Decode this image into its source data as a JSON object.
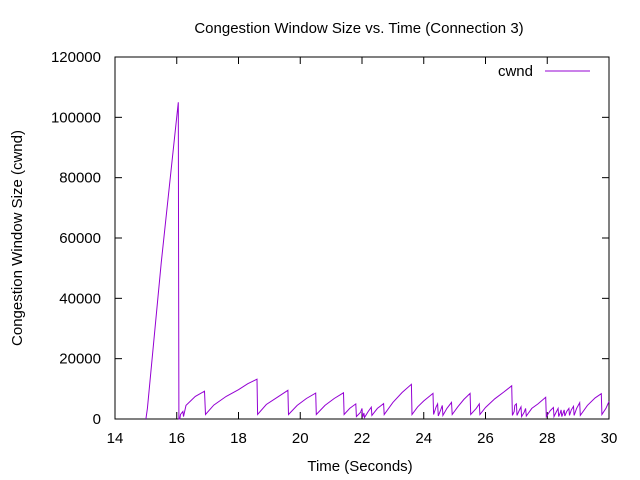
{
  "chart_data": {
    "type": "line",
    "title": "Congestion Window Size vs. Time (Connection 3)",
    "xlabel": "Time (Seconds)",
    "ylabel": "Congestion Window Size (cwnd)",
    "xlim": [
      14,
      30
    ],
    "ylim": [
      0,
      120000
    ],
    "x_ticks": [
      14,
      16,
      18,
      20,
      22,
      24,
      26,
      28,
      30
    ],
    "y_ticks": [
      0,
      20000,
      40000,
      60000,
      80000,
      100000,
      120000
    ],
    "grid": false,
    "legend_position": "top-right",
    "series": [
      {
        "name": "cwnd",
        "color": "#9400d3",
        "points": [
          [
            15.0,
            0
          ],
          [
            15.05,
            3500
          ],
          [
            15.5,
            52000
          ],
          [
            16.05,
            105000
          ],
          [
            16.06,
            52000
          ],
          [
            16.07,
            0
          ],
          [
            16.1,
            0
          ],
          [
            16.12,
            1500
          ],
          [
            16.2,
            2500
          ],
          [
            16.22,
            800
          ],
          [
            16.3,
            4500
          ],
          [
            16.6,
            7500
          ],
          [
            16.9,
            9200
          ],
          [
            16.93,
            1500
          ],
          [
            17.2,
            4600
          ],
          [
            17.6,
            7500
          ],
          [
            18.0,
            9700
          ],
          [
            18.3,
            11700
          ],
          [
            18.6,
            13200
          ],
          [
            18.62,
            1500
          ],
          [
            18.9,
            4800
          ],
          [
            19.3,
            7500
          ],
          [
            19.6,
            9500
          ],
          [
            19.62,
            1500
          ],
          [
            19.9,
            4500
          ],
          [
            20.2,
            6800
          ],
          [
            20.5,
            8600
          ],
          [
            20.52,
            1500
          ],
          [
            20.8,
            4500
          ],
          [
            21.1,
            6800
          ],
          [
            21.4,
            8700
          ],
          [
            21.42,
            1500
          ],
          [
            21.6,
            3500
          ],
          [
            21.8,
            5000
          ],
          [
            21.82,
            800
          ],
          [
            21.95,
            2200
          ],
          [
            22.0,
            3500
          ],
          [
            22.02,
            600
          ],
          [
            22.06,
            2000
          ],
          [
            22.08,
            500
          ],
          [
            22.2,
            2500
          ],
          [
            22.3,
            3900
          ],
          [
            22.32,
            1200
          ],
          [
            22.5,
            3500
          ],
          [
            22.7,
            5100
          ],
          [
            22.72,
            1500
          ],
          [
            23.0,
            5500
          ],
          [
            23.3,
            8800
          ],
          [
            23.6,
            11500
          ],
          [
            23.62,
            1500
          ],
          [
            23.8,
            4000
          ],
          [
            24.0,
            6000
          ],
          [
            24.3,
            8500
          ],
          [
            24.32,
            1500
          ],
          [
            24.4,
            4000
          ],
          [
            24.45,
            5000
          ],
          [
            24.47,
            1000
          ],
          [
            24.55,
            3000
          ],
          [
            24.6,
            4500
          ],
          [
            24.62,
            1200
          ],
          [
            24.75,
            3500
          ],
          [
            24.9,
            5500
          ],
          [
            24.92,
            1500
          ],
          [
            25.1,
            4000
          ],
          [
            25.3,
            6500
          ],
          [
            25.5,
            8500
          ],
          [
            25.52,
            1500
          ],
          [
            25.7,
            3500
          ],
          [
            25.8,
            5000
          ],
          [
            25.82,
            1500
          ],
          [
            26.0,
            3800
          ],
          [
            26.3,
            6700
          ],
          [
            26.6,
            9000
          ],
          [
            26.85,
            11000
          ],
          [
            26.87,
            1200
          ],
          [
            26.93,
            2500
          ],
          [
            26.95,
            4500
          ],
          [
            27.0,
            5000
          ],
          [
            27.02,
            1200
          ],
          [
            27.1,
            3000
          ],
          [
            27.15,
            4000
          ],
          [
            27.17,
            800
          ],
          [
            27.25,
            2200
          ],
          [
            27.3,
            3500
          ],
          [
            27.32,
            1000
          ],
          [
            27.5,
            3500
          ],
          [
            27.7,
            5000
          ],
          [
            27.95,
            7200
          ],
          [
            27.97,
            800
          ],
          [
            28.1,
            2800
          ],
          [
            28.2,
            3800
          ],
          [
            28.22,
            800
          ],
          [
            28.3,
            2500
          ],
          [
            28.35,
            3500
          ],
          [
            28.37,
            800
          ],
          [
            28.42,
            2000
          ],
          [
            28.45,
            3000
          ],
          [
            28.47,
            800
          ],
          [
            28.52,
            2200
          ],
          [
            28.55,
            3000
          ],
          [
            28.57,
            1000
          ],
          [
            28.63,
            2500
          ],
          [
            28.7,
            3500
          ],
          [
            28.72,
            1200
          ],
          [
            28.78,
            3000
          ],
          [
            28.85,
            4200
          ],
          [
            28.87,
            1200
          ],
          [
            28.95,
            3500
          ],
          [
            29.05,
            5400
          ],
          [
            29.07,
            1200
          ],
          [
            29.3,
            4500
          ],
          [
            29.55,
            7000
          ],
          [
            29.75,
            8400
          ],
          [
            29.77,
            1500
          ],
          [
            29.9,
            3500
          ],
          [
            30.0,
            5800
          ]
        ]
      }
    ]
  }
}
